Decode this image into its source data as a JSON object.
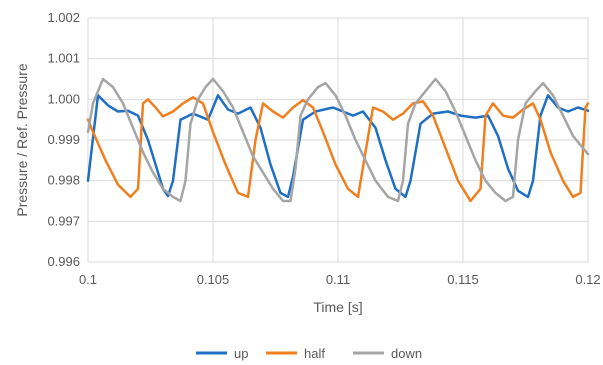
{
  "chart_data": {
    "type": "line",
    "title": "",
    "xlabel": "Time [s]",
    "ylabel": "Pressure / Ref. Pressure",
    "xlim": [
      0.1,
      0.12
    ],
    "ylim": [
      0.996,
      1.002
    ],
    "x_ticks": [
      "0.1",
      "0.105",
      "0.11",
      "0.115",
      "0.12"
    ],
    "y_ticks": [
      "0.996",
      "0.997",
      "0.998",
      "0.999",
      "1.000",
      "1.001",
      "1.002"
    ],
    "grid": true,
    "legend_position": "bottom",
    "series": [
      {
        "name": "up",
        "color": "#1f6fc5",
        "points": [
          [
            0.1,
            0.998
          ],
          [
            0.1004,
            1.0001
          ],
          [
            0.1008,
            0.99985
          ],
          [
            0.1012,
            0.9997
          ],
          [
            0.1016,
            0.99972
          ],
          [
            0.102,
            0.9996
          ],
          [
            0.1024,
            0.999
          ],
          [
            0.1028,
            0.9982
          ],
          [
            0.103,
            0.9978
          ],
          [
            0.1032,
            0.99762
          ],
          [
            0.1034,
            0.998
          ],
          [
            0.1037,
            0.9995
          ],
          [
            0.1042,
            0.99965
          ],
          [
            0.1048,
            0.9995
          ],
          [
            0.1052,
            1.0001
          ],
          [
            0.1056,
            0.99975
          ],
          [
            0.106,
            0.99965
          ],
          [
            0.1065,
            0.9998
          ],
          [
            0.1069,
            0.9993
          ],
          [
            0.1073,
            0.9984
          ],
          [
            0.1077,
            0.9977
          ],
          [
            0.108,
            0.9976
          ],
          [
            0.1082,
            0.9981
          ],
          [
            0.1086,
            0.9995
          ],
          [
            0.1091,
            0.9997
          ],
          [
            0.1098,
            0.9998
          ],
          [
            0.1102,
            0.9997
          ],
          [
            0.1106,
            0.9996
          ],
          [
            0.111,
            0.9997
          ],
          [
            0.1115,
            0.9993
          ],
          [
            0.1119,
            0.9985
          ],
          [
            0.1123,
            0.9978
          ],
          [
            0.1127,
            0.9976
          ],
          [
            0.1129,
            0.998
          ],
          [
            0.1133,
            0.9994
          ],
          [
            0.1138,
            0.99965
          ],
          [
            0.1144,
            0.9997
          ],
          [
            0.1149,
            0.9996
          ],
          [
            0.1155,
            0.99955
          ],
          [
            0.116,
            0.9996
          ],
          [
            0.1164,
            0.9991
          ],
          [
            0.1168,
            0.9983
          ],
          [
            0.1172,
            0.99775
          ],
          [
            0.1176,
            0.9976
          ],
          [
            0.1178,
            0.998
          ],
          [
            0.1181,
            0.9996
          ],
          [
            0.1184,
            1.0001
          ],
          [
            0.1188,
            0.9998
          ],
          [
            0.1192,
            0.9997
          ],
          [
            0.1196,
            0.9998
          ],
          [
            0.12,
            0.99972
          ]
        ]
      },
      {
        "name": "half",
        "color": "#f07f1e",
        "points": [
          [
            0.1,
            0.9995
          ],
          [
            0.1002,
            0.9992
          ],
          [
            0.1007,
            0.9985
          ],
          [
            0.1012,
            0.9979
          ],
          [
            0.1017,
            0.9976
          ],
          [
            0.102,
            0.9978
          ],
          [
            0.1022,
            0.9999
          ],
          [
            0.1024,
            1.0
          ],
          [
            0.1027,
            0.9998
          ],
          [
            0.103,
            0.99958
          ],
          [
            0.1034,
            0.9997
          ],
          [
            0.1038,
            0.9999
          ],
          [
            0.1042,
            1.00005
          ],
          [
            0.1046,
            0.9999
          ],
          [
            0.105,
            0.9992
          ],
          [
            0.1055,
            0.9984
          ],
          [
            0.106,
            0.9977
          ],
          [
            0.1064,
            0.9976
          ],
          [
            0.1067,
            0.999
          ],
          [
            0.107,
            0.9999
          ],
          [
            0.1074,
            0.9997
          ],
          [
            0.1078,
            0.99955
          ],
          [
            0.1082,
            0.9998
          ],
          [
            0.1086,
            0.99998
          ],
          [
            0.109,
            0.9998
          ],
          [
            0.1094,
            0.9992
          ],
          [
            0.1099,
            0.9984
          ],
          [
            0.1104,
            0.9978
          ],
          [
            0.1108,
            0.9976
          ],
          [
            0.1111,
            0.9987
          ],
          [
            0.1114,
            0.9998
          ],
          [
            0.1118,
            0.9997
          ],
          [
            0.1122,
            0.9995
          ],
          [
            0.1126,
            0.99965
          ],
          [
            0.113,
            0.9999
          ],
          [
            0.1134,
            0.99995
          ],
          [
            0.1138,
            0.9996
          ],
          [
            0.1143,
            0.9988
          ],
          [
            0.1148,
            0.998
          ],
          [
            0.1153,
            0.9975
          ],
          [
            0.1157,
            0.9978
          ],
          [
            0.1159,
            0.9996
          ],
          [
            0.1162,
            0.9999
          ],
          [
            0.1166,
            0.9996
          ],
          [
            0.117,
            0.99955
          ],
          [
            0.1174,
            0.99975
          ],
          [
            0.1178,
            0.9999
          ],
          [
            0.1181,
            0.9995
          ],
          [
            0.1185,
            0.9987
          ],
          [
            0.119,
            0.998
          ],
          [
            0.1194,
            0.9976
          ],
          [
            0.1197,
            0.9977
          ],
          [
            0.1199,
            0.9998
          ],
          [
            0.12,
            0.9999
          ]
        ]
      },
      {
        "name": "down",
        "color": "#a5a5a5",
        "points": [
          [
            0.1,
            0.9992
          ],
          [
            0.1002,
            0.9999
          ],
          [
            0.1006,
            1.0005
          ],
          [
            0.101,
            1.0003
          ],
          [
            0.1014,
            0.9999
          ],
          [
            0.1018,
            0.9993
          ],
          [
            0.1022,
            0.9987
          ],
          [
            0.1026,
            0.9982
          ],
          [
            0.103,
            0.9978
          ],
          [
            0.1034,
            0.9976
          ],
          [
            0.1037,
            0.9975
          ],
          [
            0.1039,
            0.998
          ],
          [
            0.1041,
            0.9994
          ],
          [
            0.1044,
            1.0
          ],
          [
            0.1047,
            1.0003
          ],
          [
            0.105,
            1.0005
          ],
          [
            0.1054,
            1.0002
          ],
          [
            0.1058,
            0.9998
          ],
          [
            0.1062,
            0.9992
          ],
          [
            0.1066,
            0.9986
          ],
          [
            0.107,
            0.9982
          ],
          [
            0.1074,
            0.9978
          ],
          [
            0.1078,
            0.9975
          ],
          [
            0.1081,
            0.9975
          ],
          [
            0.1083,
            0.9983
          ],
          [
            0.1085,
            0.9996
          ],
          [
            0.1088,
            1.0
          ],
          [
            0.1092,
            1.0003
          ],
          [
            0.1095,
            1.0004
          ],
          [
            0.1099,
            1.0001
          ],
          [
            0.1103,
            0.9996
          ],
          [
            0.1107,
            0.999
          ],
          [
            0.1111,
            0.9985
          ],
          [
            0.1115,
            0.998
          ],
          [
            0.112,
            0.9976
          ],
          [
            0.1124,
            0.9975
          ],
          [
            0.1126,
            0.998
          ],
          [
            0.1128,
            0.9994
          ],
          [
            0.1131,
            0.9999
          ],
          [
            0.1135,
            1.0002
          ],
          [
            0.1139,
            1.0005
          ],
          [
            0.1143,
            1.0002
          ],
          [
            0.1147,
            0.9997
          ],
          [
            0.1151,
            0.9991
          ],
          [
            0.1155,
            0.9985
          ],
          [
            0.1159,
            0.998
          ],
          [
            0.1163,
            0.9977
          ],
          [
            0.1167,
            0.9975
          ],
          [
            0.117,
            0.9976
          ],
          [
            0.1172,
            0.999
          ],
          [
            0.1175,
            0.9999
          ],
          [
            0.1179,
            1.0002
          ],
          [
            0.1182,
            1.0004
          ],
          [
            0.1186,
            1.0001
          ],
          [
            0.119,
            0.9996
          ],
          [
            0.1194,
            0.9991
          ],
          [
            0.1198,
            0.9988
          ],
          [
            0.12,
            0.99865
          ]
        ]
      }
    ]
  }
}
